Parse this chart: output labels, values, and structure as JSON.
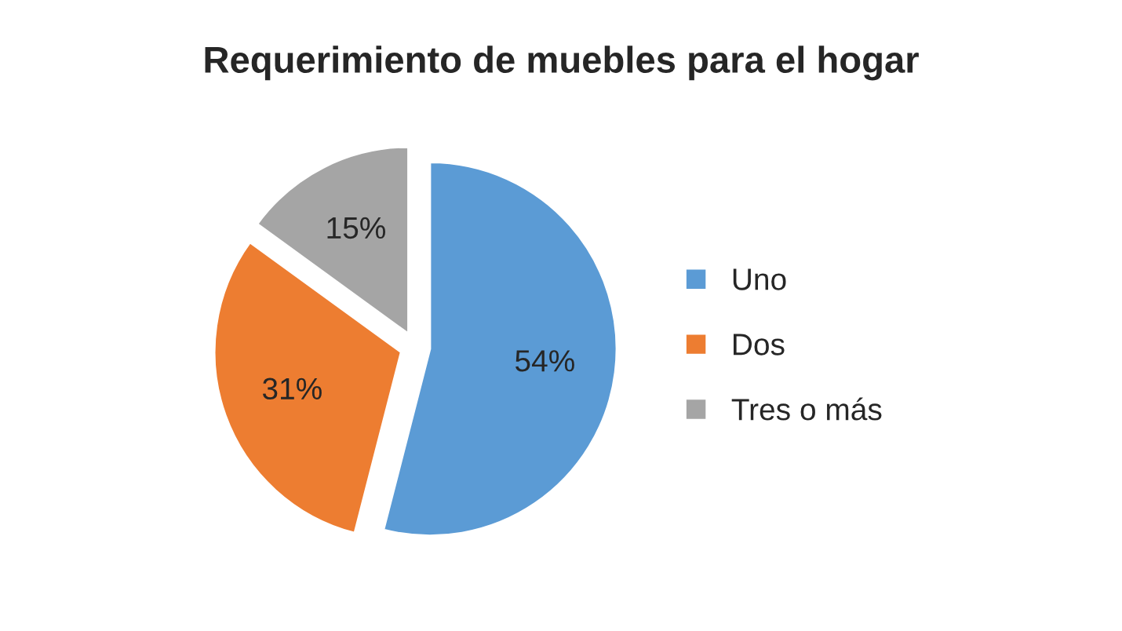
{
  "chart_data": {
    "type": "pie",
    "title": "Requerimiento de muebles para el hogar",
    "categories": [
      "Uno",
      "Dos",
      "Tres o más"
    ],
    "values": [
      54,
      31,
      15
    ],
    "colors": [
      "#5b9bd5",
      "#ed7d31",
      "#a5a5a5"
    ],
    "value_labels": [
      "54%",
      "31%",
      "15%"
    ],
    "legend": "right"
  }
}
